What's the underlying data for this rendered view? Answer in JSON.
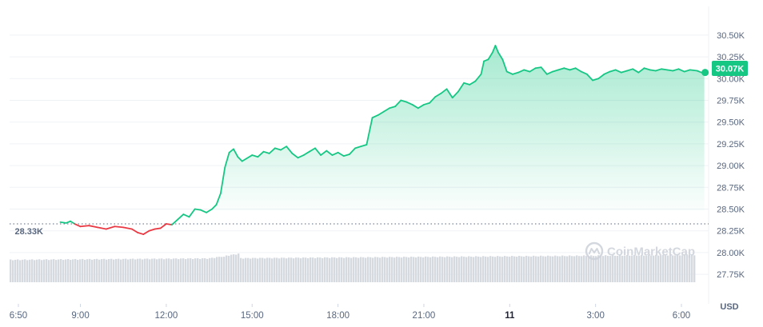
{
  "chart_data": {
    "type": "line",
    "title": "",
    "xlabel": "",
    "ylabel": "",
    "unit_label": "USD",
    "watermark": "CoinMarketCap",
    "current_price_label": "30.07K",
    "open_price_label": "28.33K",
    "open_price": 28330,
    "ylim": [
      27650,
      30600
    ],
    "y_ticks": [
      {
        "value": 30500,
        "label": "30.50K"
      },
      {
        "value": 30250,
        "label": "30.25K"
      },
      {
        "value": 30000,
        "label": "30.00K"
      },
      {
        "value": 29750,
        "label": "29.75K"
      },
      {
        "value": 29500,
        "label": "29.50K"
      },
      {
        "value": 29250,
        "label": "29.25K"
      },
      {
        "value": 29000,
        "label": "29.00K"
      },
      {
        "value": 28750,
        "label": "28.75K"
      },
      {
        "value": 28500,
        "label": "28.50K"
      },
      {
        "value": 28250,
        "label": "28.25K"
      },
      {
        "value": 28000,
        "label": "28.00K"
      },
      {
        "value": 27750,
        "label": "27.75K"
      }
    ],
    "x_ticks": [
      {
        "hour": 6.833,
        "label": "6:50",
        "bold": false
      },
      {
        "hour": 9,
        "label": "9:00",
        "bold": false
      },
      {
        "hour": 12,
        "label": "12:00",
        "bold": false
      },
      {
        "hour": 15,
        "label": "15:00",
        "bold": false
      },
      {
        "hour": 18,
        "label": "18:00",
        "bold": false
      },
      {
        "hour": 21,
        "label": "21:00",
        "bold": false
      },
      {
        "hour": 24,
        "label": "11",
        "bold": true
      },
      {
        "hour": 27,
        "label": "3:00",
        "bold": false
      },
      {
        "hour": 30,
        "label": "6:00",
        "bold": false
      }
    ],
    "colors": {
      "up": "#16c784",
      "down": "#ea3943",
      "volume": "#d5d9e0",
      "grid": "#eff2f5"
    },
    "series": [
      {
        "x": [
          8.3,
          8.5,
          8.65,
          8.8,
          9.0,
          9.3,
          9.6,
          9.9,
          10.2,
          10.5,
          10.8,
          11.0,
          11.2,
          11.4,
          11.6,
          11.8,
          12.0,
          12.2,
          12.4,
          12.6,
          12.8,
          13.0,
          13.2,
          13.4,
          13.6,
          13.75,
          13.9,
          14.05,
          14.2,
          14.35,
          14.5,
          14.65,
          14.8,
          15.0,
          15.2,
          15.4,
          15.6,
          15.8,
          16.0,
          16.2,
          16.4,
          16.6,
          16.8,
          17.0,
          17.2,
          17.4,
          17.6,
          17.8,
          18.0,
          18.2,
          18.4,
          18.6,
          18.8,
          19.0,
          19.2,
          19.4,
          19.6,
          19.8,
          20.0,
          20.2,
          20.4,
          20.6,
          20.8,
          21.0,
          21.2,
          21.4,
          21.6,
          21.8,
          22.0,
          22.2,
          22.4,
          22.6,
          22.8,
          23.0,
          23.1,
          23.25,
          23.4,
          23.5,
          23.6,
          23.75,
          23.9,
          24.1,
          24.3,
          24.5,
          24.7,
          24.9,
          25.1,
          25.3,
          25.5,
          25.7,
          25.9,
          26.1,
          26.3,
          26.5,
          26.7,
          26.9,
          27.1,
          27.3,
          27.5,
          27.7,
          27.9,
          28.1,
          28.3,
          28.5,
          28.7,
          28.9,
          29.1,
          29.3,
          29.5,
          29.7,
          29.9,
          30.1,
          30.3,
          30.55,
          30.7,
          30.8
        ],
        "y": [
          28.35,
          28.34,
          28.36,
          28.33,
          28.3,
          28.31,
          28.29,
          28.27,
          28.3,
          28.29,
          28.27,
          28.23,
          28.21,
          28.25,
          28.27,
          28.28,
          28.33,
          28.32,
          28.38,
          28.44,
          28.41,
          28.5,
          28.49,
          28.46,
          28.5,
          28.55,
          28.68,
          28.98,
          29.15,
          29.19,
          29.1,
          29.05,
          29.08,
          29.12,
          29.1,
          29.16,
          29.14,
          29.2,
          29.18,
          29.22,
          29.14,
          29.09,
          29.12,
          29.16,
          29.2,
          29.12,
          29.17,
          29.12,
          29.15,
          29.11,
          29.13,
          29.2,
          29.22,
          29.24,
          29.55,
          29.58,
          29.62,
          29.66,
          29.68,
          29.75,
          29.73,
          29.7,
          29.66,
          29.7,
          29.72,
          29.79,
          29.83,
          29.88,
          29.78,
          29.85,
          29.95,
          29.93,
          29.97,
          30.05,
          30.2,
          30.22,
          30.3,
          30.38,
          30.3,
          30.22,
          30.08,
          30.05,
          30.07,
          30.1,
          30.08,
          30.12,
          30.13,
          30.05,
          30.08,
          30.1,
          30.12,
          30.1,
          30.12,
          30.08,
          30.05,
          29.98,
          30.0,
          30.05,
          30.08,
          30.1,
          30.07,
          30.09,
          30.11,
          30.07,
          30.12,
          30.1,
          30.09,
          30.11,
          30.1,
          30.09,
          30.11,
          30.08,
          30.1,
          30.09,
          30.07,
          30.07
        ],
        "y_unit": "thousand USD"
      }
    ]
  }
}
